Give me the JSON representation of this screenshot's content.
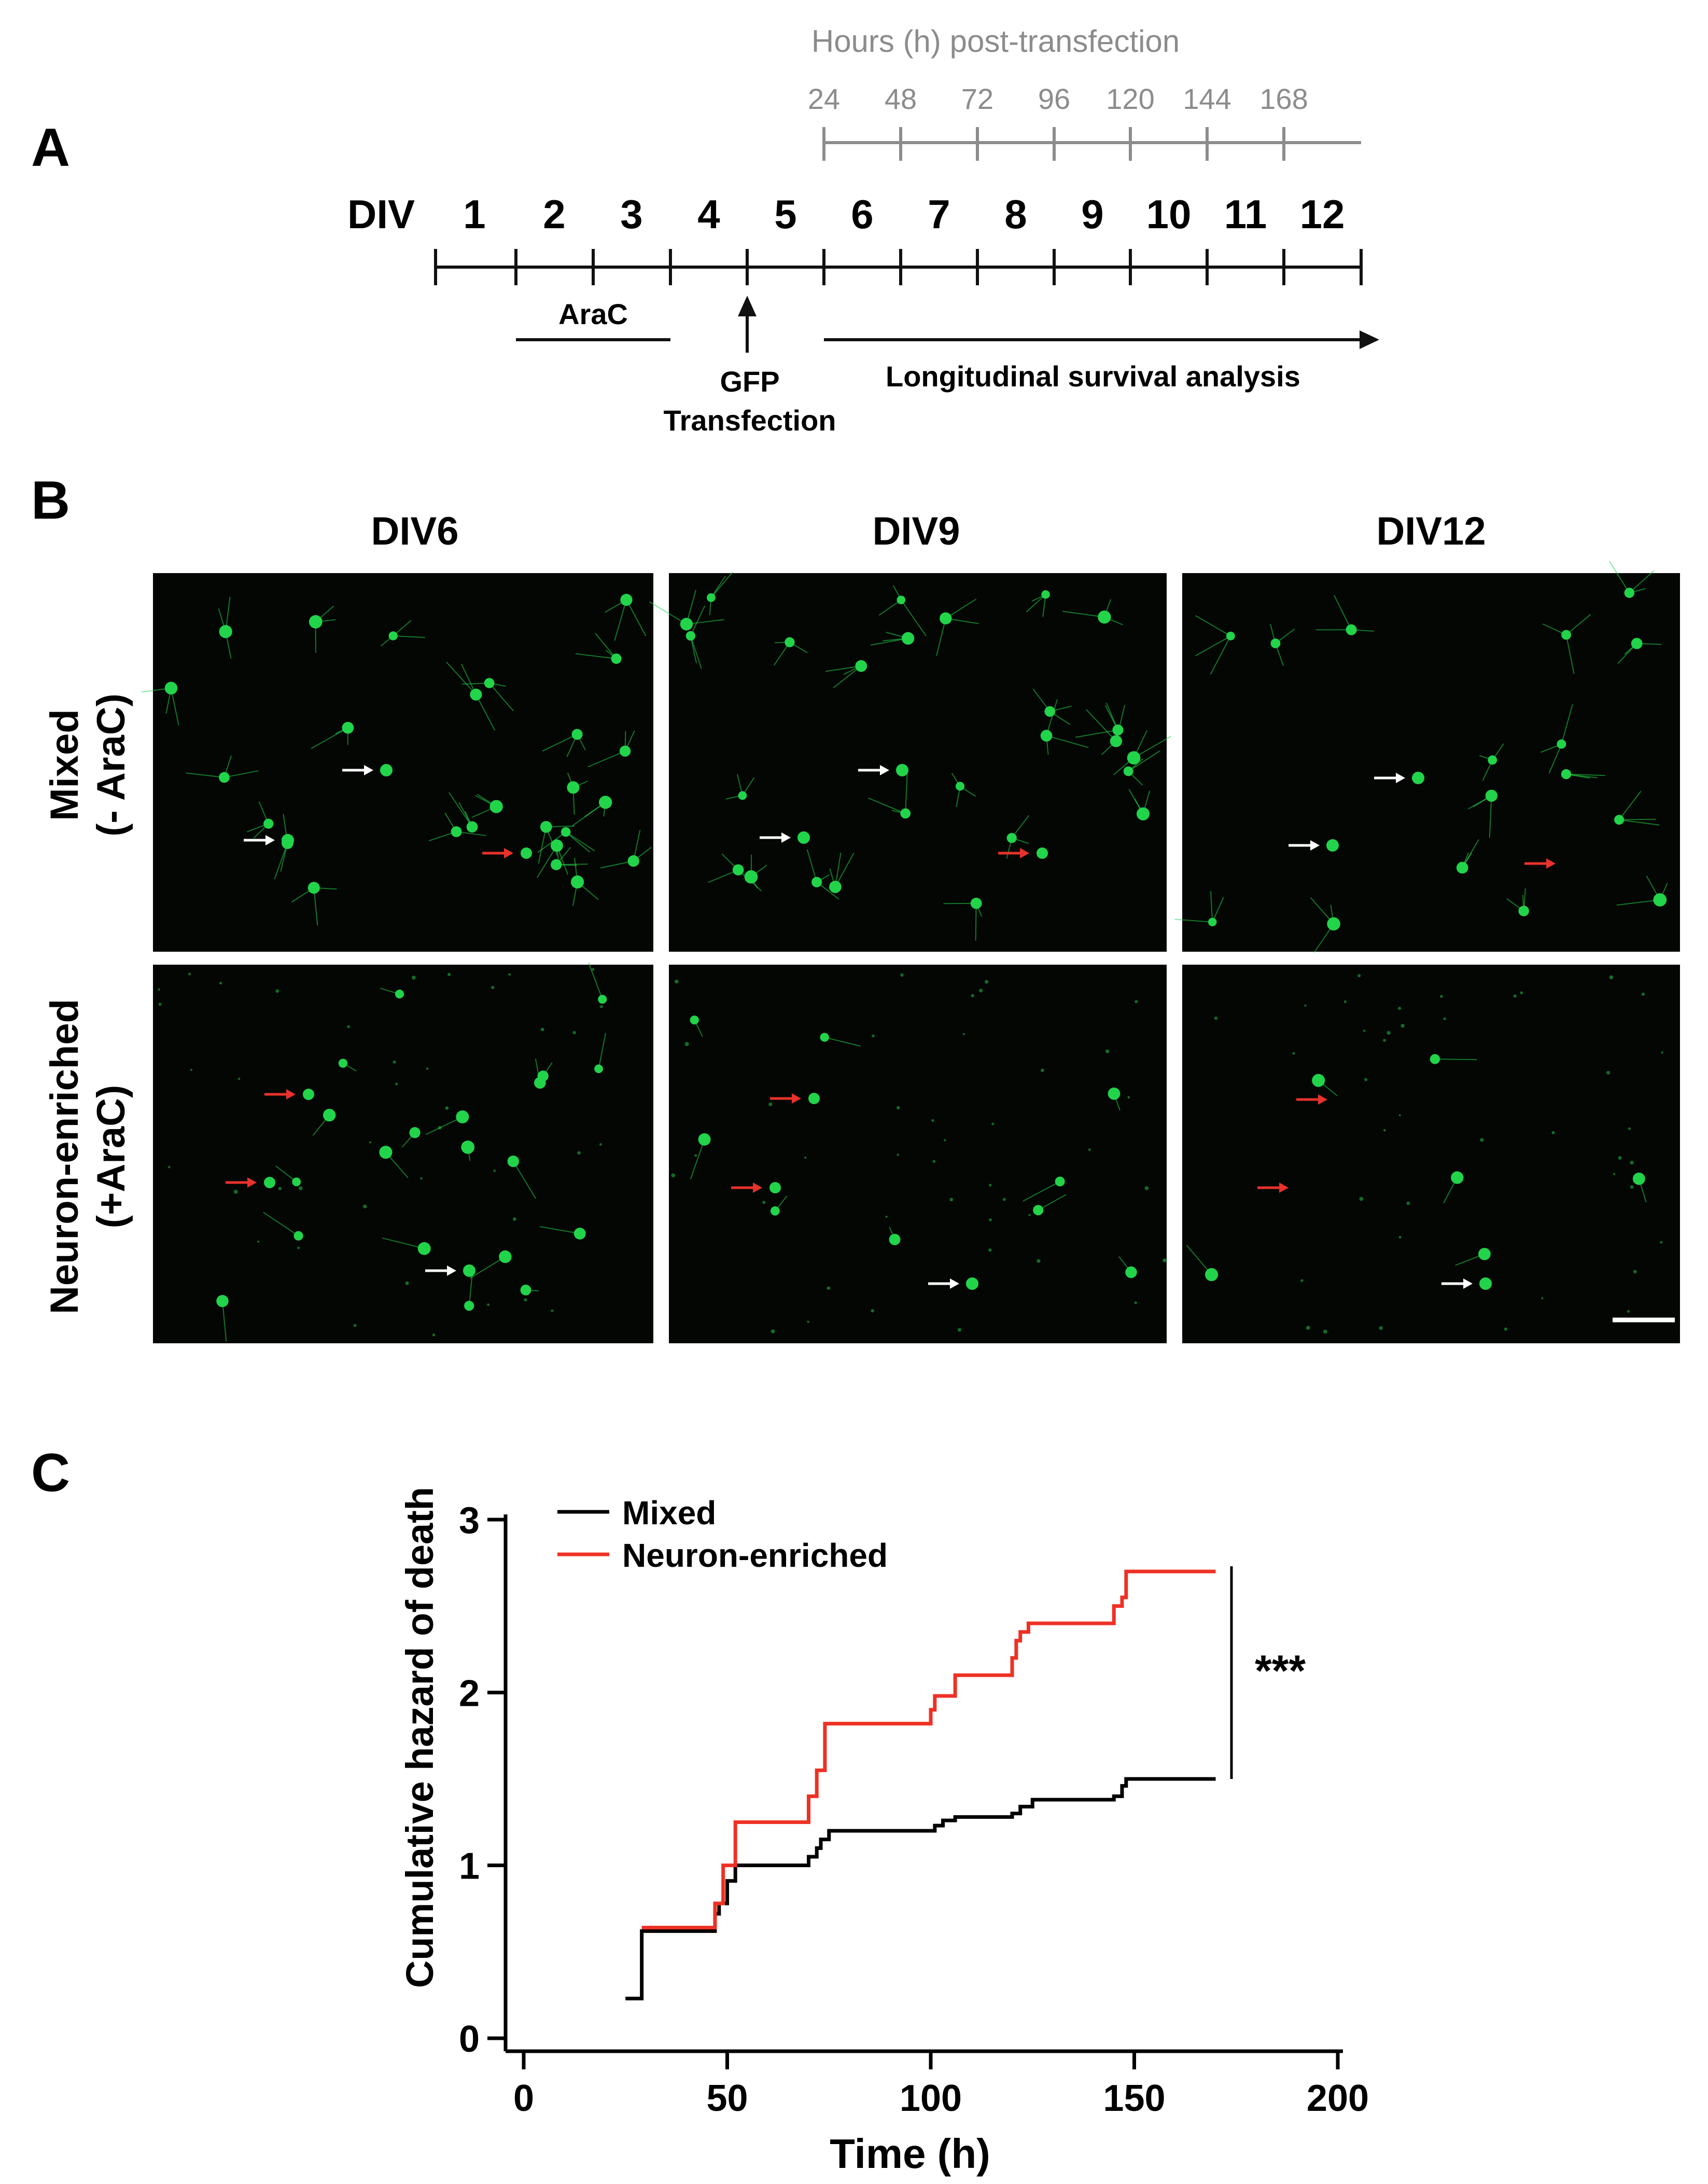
{
  "panel_a": {
    "letter": "A",
    "hours_title": "Hours (h) post-transfection",
    "hours": [
      "24",
      "48",
      "72",
      "96",
      "120",
      "144",
      "168"
    ],
    "div_label": "DIV",
    "div_days": [
      "1",
      "2",
      "3",
      "4",
      "5",
      "6",
      "7",
      "8",
      "9",
      "10",
      "11",
      "12"
    ],
    "arac_label": "AraC",
    "gfp_label": "GFP",
    "transfection_label": "Transfection",
    "survival_label": "Longitudinal survival analysis"
  },
  "panel_b": {
    "letter": "B",
    "columns": [
      "DIV6",
      "DIV9",
      "DIV12"
    ],
    "rows": [
      {
        "line1": "Mixed",
        "line2": "(- AraC)"
      },
      {
        "line1": "Neuron-enriched",
        "line2": "(+AraC)"
      }
    ],
    "colors": {
      "cell": "#22d44a",
      "white_arrow": "#ffffff",
      "red_arrow": "#e8322b",
      "background": "#030603"
    }
  },
  "panel_c": {
    "letter": "C",
    "significance": "***",
    "chart_data": {
      "type": "line",
      "xlabel": "Time (h)",
      "ylabel": "Cumulative hazard of death",
      "xlim": [
        0,
        200
      ],
      "ylim": [
        0,
        3
      ],
      "xticks": [
        "0",
        "50",
        "100",
        "150",
        "200"
      ],
      "yticks": [
        "0",
        "1",
        "2",
        "3"
      ],
      "grid": false,
      "legend_position": "top-left",
      "step": true,
      "series": [
        {
          "name": "Mixed",
          "color": "#000000",
          "x": [
            25,
            29,
            47,
            48,
            50,
            52,
            70,
            72,
            73,
            75,
            100,
            101,
            103,
            106,
            120,
            122,
            125,
            145,
            147,
            148,
            170
          ],
          "y": [
            0.23,
            0.62,
            0.72,
            0.78,
            0.91,
            1.0,
            1.05,
            1.1,
            1.15,
            1.2,
            1.2,
            1.23,
            1.26,
            1.28,
            1.3,
            1.34,
            1.38,
            1.4,
            1.46,
            1.5,
            1.5
          ]
        },
        {
          "name": "Neuron-enriched",
          "color": "#ee3124",
          "x": [
            29,
            47,
            49,
            52,
            70,
            72,
            74,
            100,
            101,
            106,
            120,
            121,
            122,
            124,
            145,
            147,
            148,
            170
          ],
          "y": [
            0.64,
            0.78,
            1.0,
            1.25,
            1.4,
            1.55,
            1.82,
            1.9,
            1.98,
            2.1,
            2.2,
            2.3,
            2.35,
            2.4,
            2.5,
            2.55,
            2.7,
            2.7
          ]
        }
      ]
    }
  }
}
